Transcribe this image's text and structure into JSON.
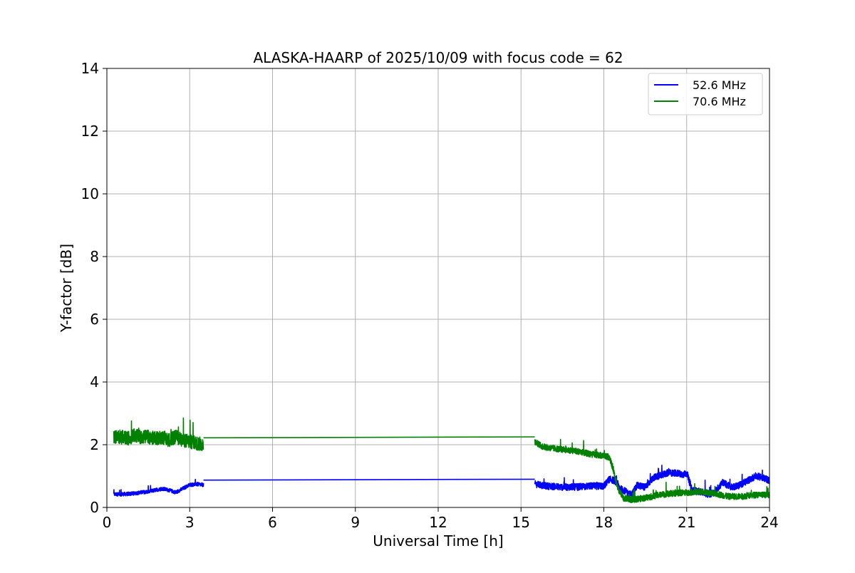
{
  "chart_data": {
    "type": "line",
    "title": "ALASKA-HAARP of 2025/10/09 with focus code = 62",
    "xlabel": "Universal Time [h]",
    "ylabel": "Y-factor [dB]",
    "xlim": [
      0,
      24
    ],
    "ylim": [
      0,
      14
    ],
    "xticks": [
      0,
      3,
      6,
      9,
      12,
      15,
      18,
      21,
      24
    ],
    "yticks": [
      0,
      2,
      4,
      6,
      8,
      10,
      12,
      14
    ],
    "grid": true,
    "legend_position": "top-right",
    "series": [
      {
        "name": "52.6 MHz",
        "color": "#0000ff",
        "segments": [
          {
            "kind": "noisy",
            "x": [
              0.25,
              0.5,
              0.75,
              1.0,
              1.25,
              1.5,
              1.75,
              2.0,
              2.25,
              2.5,
              2.75,
              3.0,
              3.25,
              3.5
            ],
            "y": [
              0.42,
              0.42,
              0.43,
              0.45,
              0.48,
              0.5,
              0.55,
              0.6,
              0.55,
              0.48,
              0.6,
              0.72,
              0.74,
              0.72
            ],
            "noise": 0.12
          },
          {
            "kind": "clean",
            "x": [
              3.5,
              15.5
            ],
            "y": [
              0.87,
              0.9
            ],
            "noise": 0
          },
          {
            "kind": "noisy",
            "x": [
              15.5,
              15.75,
              16.0,
              16.5,
              17.0,
              17.5,
              18.0,
              18.2,
              18.4,
              18.6,
              18.8,
              19.0,
              19.2,
              19.5,
              19.8,
              20.0,
              20.3,
              20.6,
              20.9,
              21.0,
              21.2,
              21.5,
              21.8,
              22.0,
              22.3,
              22.6,
              22.9,
              23.2,
              23.5,
              23.8,
              24.0
            ],
            "y": [
              0.75,
              0.7,
              0.68,
              0.65,
              0.65,
              0.68,
              0.68,
              0.9,
              0.85,
              0.6,
              0.5,
              0.4,
              0.7,
              0.65,
              0.95,
              1.0,
              1.1,
              1.1,
              1.05,
              1.1,
              0.55,
              0.5,
              0.42,
              0.48,
              0.8,
              0.65,
              0.7,
              0.85,
              1.0,
              0.95,
              0.85
            ],
            "noise": 0.22
          }
        ]
      },
      {
        "name": "70.6 MHz",
        "color": "#008000",
        "segments": [
          {
            "kind": "noisy",
            "x": [
              0.25,
              0.5,
              0.75,
              1.0,
              1.25,
              1.5,
              1.75,
              2.0,
              2.25,
              2.5,
              2.75,
              3.0,
              3.25,
              3.5
            ],
            "y": [
              2.25,
              2.25,
              2.2,
              2.3,
              2.25,
              2.25,
              2.2,
              2.25,
              2.15,
              2.25,
              2.15,
              2.1,
              2.05,
              2.0
            ],
            "noise": 0.45
          },
          {
            "kind": "clean",
            "x": [
              3.5,
              15.5
            ],
            "y": [
              2.22,
              2.25
            ],
            "noise": 0
          },
          {
            "kind": "noisy",
            "x": [
              15.5,
              15.75,
              16.0,
              16.5,
              17.0,
              17.5,
              18.0,
              18.2,
              18.35,
              18.5,
              18.7,
              19.0,
              19.3,
              19.6,
              20.0,
              20.5,
              21.0,
              21.5,
              22.0,
              22.5,
              23.0,
              23.5,
              24.0
            ],
            "y": [
              2.1,
              1.95,
              1.9,
              1.85,
              1.8,
              1.7,
              1.65,
              1.6,
              1.2,
              0.6,
              0.3,
              0.25,
              0.28,
              0.32,
              0.4,
              0.45,
              0.48,
              0.5,
              0.45,
              0.35,
              0.35,
              0.4,
              0.4
            ],
            "noise": 0.2
          }
        ]
      }
    ]
  }
}
